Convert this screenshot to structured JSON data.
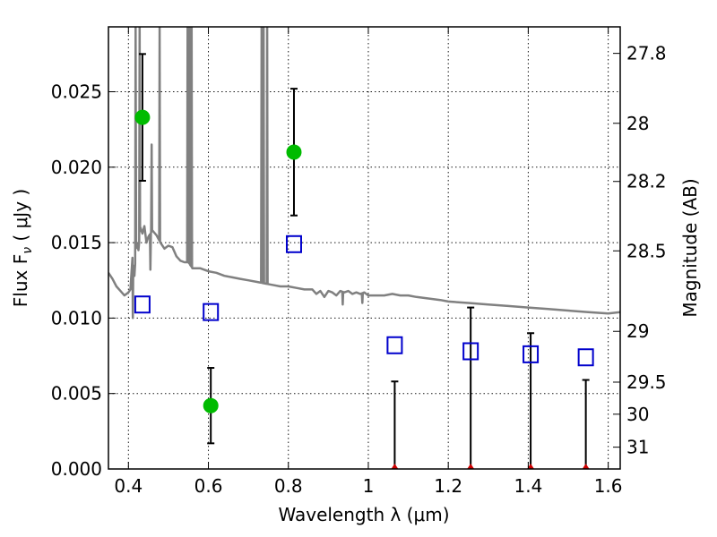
{
  "chart_data": {
    "type": "scatter",
    "xlabel": "Wavelength  λ (μm)",
    "ylabel": "Flux  F",
    "ylabel_sub": "ν",
    "ylabel_unit": "  ( μJy )",
    "y2label": "Magnitude (AB)",
    "xlim": [
      0.35,
      1.63
    ],
    "ylim": [
      0.0,
      0.0293
    ],
    "grid": true,
    "x_ticks": [
      {
        "value": 0.4,
        "label": "0.4"
      },
      {
        "value": 0.6,
        "label": "0.6"
      },
      {
        "value": 0.8,
        "label": "0.8"
      },
      {
        "value": 1.0,
        "label": "1"
      },
      {
        "value": 1.2,
        "label": "1.2"
      },
      {
        "value": 1.4,
        "label": "1.4"
      },
      {
        "value": 1.6,
        "label": "1.6"
      }
    ],
    "y_ticks": [
      {
        "value": 0.0,
        "label": "0.000"
      },
      {
        "value": 0.005,
        "label": "0.005"
      },
      {
        "value": 0.01,
        "label": "0.010"
      },
      {
        "value": 0.015,
        "label": "0.015"
      },
      {
        "value": 0.02,
        "label": "0.020"
      },
      {
        "value": 0.025,
        "label": "0.025"
      }
    ],
    "y2_ticks": [
      {
        "value": 27.8,
        "label": "27.8"
      },
      {
        "value": 28.0,
        "label": "28"
      },
      {
        "value": 28.2,
        "label": "28.2"
      },
      {
        "value": 28.5,
        "label": "28.5"
      },
      {
        "value": 29.0,
        "label": "29"
      },
      {
        "value": 29.5,
        "label": "29.5"
      },
      {
        "value": 30.0,
        "label": "30"
      },
      {
        "value": 31.0,
        "label": "31"
      }
    ],
    "series": [
      {
        "kind": "measured",
        "color": "#00bb00",
        "points": [
          {
            "x": 0.435,
            "y": 0.0233,
            "ylo": 0.0191,
            "yhi": 0.0275
          },
          {
            "x": 0.606,
            "y": 0.0042,
            "ylo": 0.0017,
            "yhi": 0.0067
          },
          {
            "x": 0.814,
            "y": 0.021,
            "ylo": 0.0168,
            "yhi": 0.0252
          }
        ]
      },
      {
        "kind": "upper-limit",
        "color": "#cc0000",
        "points": [
          {
            "x": 1.066,
            "y": 0.0,
            "yhi": 0.0058
          },
          {
            "x": 1.256,
            "y": 0.0,
            "yhi": 0.0107
          },
          {
            "x": 1.406,
            "y": 0.0,
            "yhi": 0.009
          },
          {
            "x": 1.544,
            "y": 0.0,
            "yhi": 0.0059
          }
        ]
      },
      {
        "kind": "model",
        "color": "#0000cc",
        "points": [
          {
            "x": 0.435,
            "y": 0.0109
          },
          {
            "x": 0.606,
            "y": 0.0104
          },
          {
            "x": 0.814,
            "y": 0.0149
          },
          {
            "x": 1.066,
            "y": 0.0082
          },
          {
            "x": 1.256,
            "y": 0.0078
          },
          {
            "x": 1.406,
            "y": 0.0076
          },
          {
            "x": 1.544,
            "y": 0.0074
          }
        ]
      }
    ],
    "sed": {
      "color": "#808080",
      "points": [
        [
          0.35,
          0.013
        ],
        [
          0.36,
          0.0126
        ],
        [
          0.37,
          0.0121
        ],
        [
          0.38,
          0.0118
        ],
        [
          0.39,
          0.0115
        ],
        [
          0.4,
          0.0117
        ],
        [
          0.405,
          0.0119
        ],
        [
          0.41,
          0.014
        ],
        [
          0.415,
          0.0128
        ],
        [
          0.42,
          0.015
        ],
        [
          0.425,
          0.0145
        ],
        [
          0.43,
          0.016
        ],
        [
          0.435,
          0.0156
        ],
        [
          0.44,
          0.0161
        ],
        [
          0.445,
          0.015
        ],
        [
          0.45,
          0.0154
        ],
        [
          0.46,
          0.0158
        ],
        [
          0.47,
          0.0155
        ],
        [
          0.48,
          0.015
        ],
        [
          0.49,
          0.0146
        ],
        [
          0.5,
          0.0148
        ],
        [
          0.51,
          0.0147
        ],
        [
          0.52,
          0.0141
        ],
        [
          0.53,
          0.0138
        ],
        [
          0.54,
          0.0137
        ],
        [
          0.55,
          0.0137
        ],
        [
          0.56,
          0.0133
        ],
        [
          0.58,
          0.0133
        ],
        [
          0.6,
          0.0131
        ],
        [
          0.62,
          0.013
        ],
        [
          0.64,
          0.0128
        ],
        [
          0.66,
          0.0127
        ],
        [
          0.68,
          0.0126
        ],
        [
          0.7,
          0.0125
        ],
        [
          0.72,
          0.0124
        ],
        [
          0.74,
          0.0123
        ],
        [
          0.76,
          0.0122
        ],
        [
          0.78,
          0.0121
        ],
        [
          0.8,
          0.0121
        ],
        [
          0.82,
          0.012
        ],
        [
          0.84,
          0.0119
        ],
        [
          0.86,
          0.0119
        ],
        [
          0.87,
          0.0116
        ],
        [
          0.88,
          0.0118
        ],
        [
          0.89,
          0.0114
        ],
        [
          0.9,
          0.0118
        ],
        [
          0.91,
          0.0117
        ],
        [
          0.92,
          0.0115
        ],
        [
          0.93,
          0.0118
        ],
        [
          0.94,
          0.0117
        ],
        [
          0.95,
          0.0118
        ],
        [
          0.96,
          0.0116
        ],
        [
          0.97,
          0.0117
        ],
        [
          0.98,
          0.0116
        ],
        [
          0.99,
          0.0117
        ],
        [
          1.0,
          0.0115
        ],
        [
          1.02,
          0.0115
        ],
        [
          1.04,
          0.0115
        ],
        [
          1.06,
          0.0116
        ],
        [
          1.08,
          0.0115
        ],
        [
          1.1,
          0.0115
        ],
        [
          1.12,
          0.0114
        ],
        [
          1.15,
          0.0113
        ],
        [
          1.18,
          0.0112
        ],
        [
          1.2,
          0.0111
        ],
        [
          1.25,
          0.011
        ],
        [
          1.3,
          0.0109
        ],
        [
          1.35,
          0.0108
        ],
        [
          1.4,
          0.0107
        ],
        [
          1.45,
          0.0106
        ],
        [
          1.5,
          0.0105
        ],
        [
          1.55,
          0.0104
        ],
        [
          1.6,
          0.0103
        ],
        [
          1.63,
          0.0104
        ]
      ],
      "spikes": [
        {
          "x": 0.418,
          "y": 0.0293
        },
        {
          "x": 0.428,
          "y": 0.0293
        },
        {
          "x": 0.458,
          "y": 0.0215
        },
        {
          "x": 0.478,
          "y": 0.0293
        },
        {
          "x": 0.548,
          "y": 0.0293
        },
        {
          "x": 0.553,
          "y": 0.0293
        },
        {
          "x": 0.558,
          "y": 0.0293
        },
        {
          "x": 0.733,
          "y": 0.0293
        },
        {
          "x": 0.738,
          "y": 0.0293
        },
        {
          "x": 0.747,
          "y": 0.0293
        }
      ],
      "dips": [
        {
          "x": 0.411,
          "y": 0.01
        },
        {
          "x": 0.455,
          "y": 0.0132
        },
        {
          "x": 0.936,
          "y": 0.0109
        },
        {
          "x": 0.985,
          "y": 0.011
        }
      ]
    }
  }
}
